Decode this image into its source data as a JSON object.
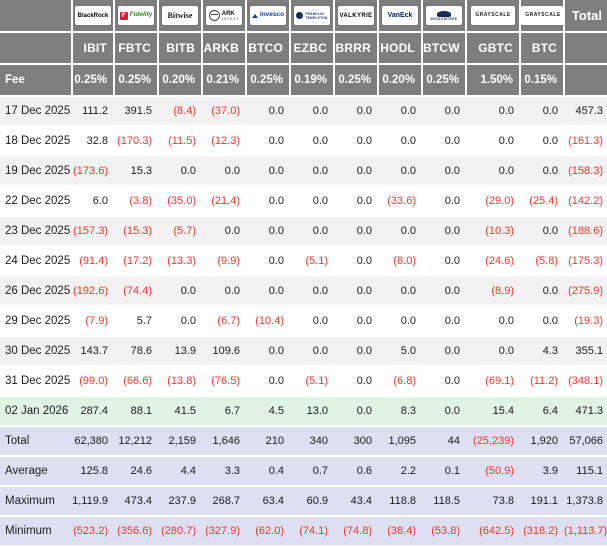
{
  "colors": {
    "header_bg": "#7e7e7e",
    "negative": "#fa332c",
    "row_stripe": "#f2f2f3",
    "row_green": "#e1f3e2",
    "row_summary": "#dee0f2",
    "header_text": "#ffffff",
    "body_text": "#1c1c1e"
  },
  "header": {
    "providers": [
      {
        "id": "blackrock",
        "icon": "blackrock-logo",
        "label": "BlackRock"
      },
      {
        "id": "fidelity",
        "icon": "fidelity-logo",
        "mark": "F",
        "label": "Fidelity"
      },
      {
        "id": "bitwise",
        "icon": "bitwise-logo",
        "label": "Bitwise"
      },
      {
        "id": "ark",
        "icon": "ark-invest-logo",
        "label": "ARK",
        "sublabel": "INVEST"
      },
      {
        "id": "invesco",
        "icon": "invesco-logo",
        "label": "Invesco"
      },
      {
        "id": "franklin",
        "icon": "franklin-templeton-logo",
        "label": "FRANKLIN",
        "sublabel": "TEMPLETON"
      },
      {
        "id": "valkyrie",
        "icon": "valkyrie-logo",
        "label": "VALKYRIE"
      },
      {
        "id": "vaneck",
        "icon": "vaneck-logo",
        "label": "VanEck"
      },
      {
        "id": "wisdomtree",
        "icon": "wisdomtree-logo",
        "label": "WISDOMTREE"
      },
      {
        "id": "grayscale",
        "icon": "grayscale-gbtc-logo",
        "label": "GRAYSCALE"
      },
      {
        "id": "grayscale2",
        "icon": "grayscale-btc-logo",
        "label": "GRAYSCALE"
      }
    ],
    "total_label": "Total"
  },
  "chart_data": {
    "type": "table",
    "tickers": [
      "IBIT",
      "FBTC",
      "BITB",
      "ARKB",
      "BTCO",
      "EZBC",
      "BRRR",
      "HODL",
      "BTCW",
      "GBTC",
      "BTC"
    ],
    "fee_row": {
      "label": "Fee",
      "fees": [
        "0.25%",
        "0.25%",
        "0.20%",
        "0.21%",
        "0.25%",
        "0.19%",
        "0.25%",
        "0.20%",
        "0.25%",
        "1.50%",
        "0.15%"
      ]
    },
    "rows": [
      {
        "label": "17 Dec 2025",
        "values": [
          "111.2",
          "391.5",
          "(8.4)",
          "(37.0)",
          "0.0",
          "0.0",
          "0.0",
          "0.0",
          "0.0",
          "0.0",
          "0.0"
        ],
        "total": "457.3"
      },
      {
        "label": "18 Dec 2025",
        "values": [
          "32.8",
          "(170.3)",
          "(11.5)",
          "(12.3)",
          "0.0",
          "0.0",
          "0.0",
          "0.0",
          "0.0",
          "0.0",
          "0.0"
        ],
        "total": "(161.3)"
      },
      {
        "label": "19 Dec 2025",
        "values": [
          "(173.6)",
          "15.3",
          "0.0",
          "0.0",
          "0.0",
          "0.0",
          "0.0",
          "0.0",
          "0.0",
          "0.0",
          "0.0"
        ],
        "total": "(158.3)"
      },
      {
        "label": "22 Dec 2025",
        "values": [
          "6.0",
          "(3.8)",
          "(35.0)",
          "(21.4)",
          "0.0",
          "0.0",
          "0.0",
          "(33.6)",
          "0.0",
          "(29.0)",
          "(25.4)"
        ],
        "total": "(142.2)"
      },
      {
        "label": "23 Dec 2025",
        "values": [
          "(157.3)",
          "(15.3)",
          "(5.7)",
          "0.0",
          "0.0",
          "0.0",
          "0.0",
          "0.0",
          "0.0",
          "(10.3)",
          "0.0"
        ],
        "total": "(188.6)"
      },
      {
        "label": "24 Dec 2025",
        "values": [
          "(91.4)",
          "(17.2)",
          "(13.3)",
          "(9.9)",
          "0.0",
          "(5.1)",
          "0.0",
          "(8.0)",
          "0.0",
          "(24.6)",
          "(5.8)"
        ],
        "total": "(175.3)"
      },
      {
        "label": "26 Dec 2025",
        "values": [
          "(192.6)",
          "(74.4)",
          "0.0",
          "0.0",
          "0.0",
          "0.0",
          "0.0",
          "0.0",
          "0.0",
          "(8.9)",
          "0.0"
        ],
        "total": "(275.9)"
      },
      {
        "label": "29 Dec 2025",
        "values": [
          "(7.9)",
          "5.7",
          "0.0",
          "(6.7)",
          "(10.4)",
          "0.0",
          "0.0",
          "0.0",
          "0.0",
          "0.0",
          "0.0"
        ],
        "total": "(19.3)"
      },
      {
        "label": "30 Dec 2025",
        "values": [
          "143.7",
          "78.6",
          "13.9",
          "109.6",
          "0.0",
          "0.0",
          "0.0",
          "5.0",
          "0.0",
          "0.0",
          "4.3"
        ],
        "total": "355.1"
      },
      {
        "label": "31 Dec 2025",
        "values": [
          "(99.0)",
          "(66.6)",
          "(13.8)",
          "(76.5)",
          "0.0",
          "(5.1)",
          "0.0",
          "(6.8)",
          "0.0",
          "(69.1)",
          "(11.2)"
        ],
        "total": "(348.1)"
      },
      {
        "label": "02 Jan 2026",
        "values": [
          "287.4",
          "88.1",
          "41.5",
          "6.7",
          "4.5",
          "13.0",
          "0.0",
          "8.3",
          "0.0",
          "15.4",
          "6.4"
        ],
        "total": "471.3"
      }
    ],
    "summary_rows": [
      {
        "label": "Total",
        "values": [
          "62,380",
          "12,212",
          "2,159",
          "1,646",
          "210",
          "340",
          "300",
          "1,095",
          "44",
          "(25,239)",
          "1,920"
        ],
        "total": "57,066"
      },
      {
        "label": "Average",
        "values": [
          "125.8",
          "24.6",
          "4.4",
          "3.3",
          "0.4",
          "0.7",
          "0.6",
          "2.2",
          "0.1",
          "(50.9)",
          "3.9"
        ],
        "total": "115.1"
      },
      {
        "label": "Maximum",
        "values": [
          "1,119.9",
          "473.4",
          "237.9",
          "268.7",
          "63.4",
          "60.9",
          "43.4",
          "118.8",
          "118.5",
          "73.8",
          "191.1"
        ],
        "total": "1,373.8"
      },
      {
        "label": "Minimum",
        "values": [
          "(523.2)",
          "(356.6)",
          "(280.7)",
          "(327.9)",
          "(62.0)",
          "(74.1)",
          "(74.8)",
          "(38.4)",
          "(53.8)",
          "(642.5)",
          "(318.2)"
        ],
        "total": "(1,113.7)"
      }
    ]
  }
}
